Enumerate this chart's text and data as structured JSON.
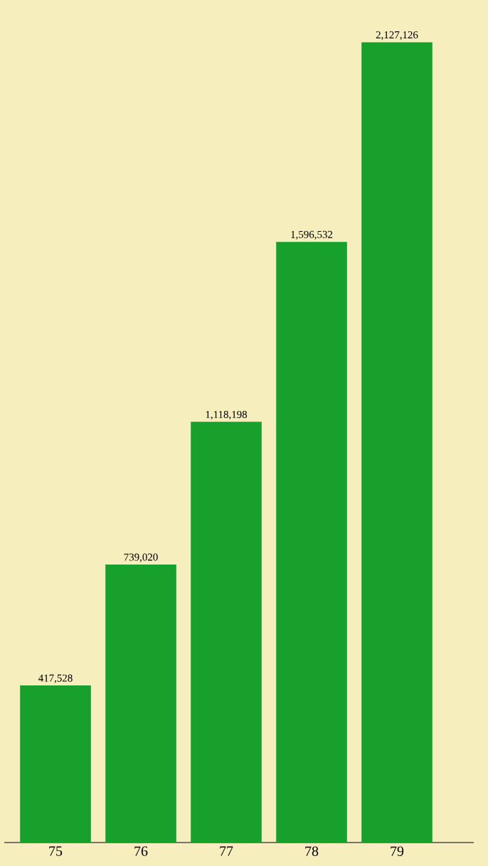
{
  "chart_data": {
    "type": "bar",
    "categories": [
      "75",
      "76",
      "77",
      "78",
      "79"
    ],
    "values": [
      417528,
      739020,
      1118198,
      1596532,
      2127126
    ],
    "value_labels": [
      "417,528",
      "739,020",
      "1,118,198",
      "1,596,532",
      "2,127,126"
    ],
    "color": "#17a02c"
  }
}
